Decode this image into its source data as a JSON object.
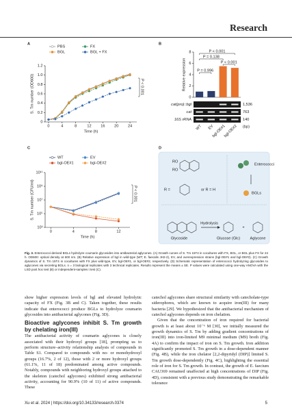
{
  "header": {
    "journal": "Research"
  },
  "figure": {
    "panels": [
      {
        "letter": "A",
        "type": "line",
        "x": [
          0,
          2,
          4,
          6,
          8,
          10,
          12,
          14,
          16,
          18,
          20,
          22,
          24
        ],
        "xlim": [
          -1,
          26
        ],
        "xticks": [
          0,
          4,
          8,
          12,
          16,
          20,
          24
        ],
        "ylim": [
          0,
          1.2
        ],
        "yticks": [
          0,
          0.2,
          0.4,
          0.6,
          0.8,
          {
            "value": 1,
            "label": "1.0"
          },
          1.2
        ],
        "xlabel": "Time (h)",
        "ylabel": "S. Tm number (OD600)",
        "annotation": "P < 0.001",
        "series": [
          {
            "name": "PBS",
            "color": "#8c8c8c",
            "values": [
              0.05,
              0.08,
              0.22,
              0.42,
              0.55,
              0.63,
              0.7,
              0.76,
              0.82,
              0.88,
              0.93,
              0.98,
              1.02
            ]
          },
          {
            "name": "FX",
            "color": "#3e9a6e",
            "values": [
              0.05,
              0.07,
              0.2,
              0.4,
              0.52,
              0.6,
              0.66,
              0.72,
              0.78,
              0.84,
              0.9,
              0.95,
              1.0
            ]
          },
          {
            "name": "BGL",
            "color": "#e8902c",
            "values": [
              0.05,
              0.08,
              0.21,
              0.41,
              0.54,
              0.62,
              0.69,
              0.75,
              0.81,
              0.87,
              0.92,
              0.97,
              1.01
            ]
          },
          {
            "name": "BGL + FX",
            "color": "#3b6fb6",
            "values": [
              0.05,
              0.06,
              0.12,
              0.2,
              0.28,
              0.35,
              0.42,
              0.48,
              0.54,
              0.6,
              0.64,
              0.68,
              0.72
            ]
          }
        ]
      },
      {
        "letter": "B",
        "type": "bar",
        "categories": [
          "WT",
          "EV",
          "bgl-OE#1",
          "bgl-OE#2"
        ],
        "values": [
          1,
          1.1,
          5.5,
          5.2
        ],
        "colors": [
          "#2c3e6b",
          "#2c3e6b",
          "#e8722c",
          "#e8722c"
        ],
        "ylim": [
          0,
          8
        ],
        "yticks": [
          0,
          2,
          4,
          6,
          8
        ],
        "ylabel": "Relative expression",
        "annotations": [
          "P = 0.996",
          "P < 0.001",
          "P < 0.001",
          "P = 0.138"
        ],
        "gel": {
          "rows": [
            "cat(pro)::bgl",
            "cat",
            "16S rRNA"
          ],
          "sizes": [
            "1,536",
            "763",
            "140"
          ],
          "unit": "(bp)"
        }
      },
      {
        "letter": "C",
        "type": "line",
        "log_scale": true,
        "x": [
          0,
          4,
          8,
          12
        ],
        "xlim": [
          -1,
          14
        ],
        "xticks": [
          0,
          4,
          8,
          12
        ],
        "ylim": [
          1000,
          100000000000
        ],
        "yticks": [
          {
            "value": 1000,
            "label": "10³"
          },
          {
            "value": 100000,
            "label": "10⁵"
          },
          {
            "value": 10000000,
            "label": "10⁷"
          },
          {
            "value": 1000000000,
            "label": "10⁹"
          },
          {
            "value": 100000000000,
            "label": "10¹¹"
          }
        ],
        "xlabel": "Time (h)",
        "ylabel": "S. Tm number (CFU/ml)",
        "annotation": "P < 0.001",
        "series": [
          {
            "name": "WT",
            "color": "#2c3e6b",
            "values": [
              1000000,
              300000,
              5000000,
              100000000
            ]
          },
          {
            "name": "EV",
            "color": "#4a86c8",
            "values": [
              1000000,
              250000,
              4000000,
              80000000
            ]
          },
          {
            "name": "bgl-OE#1",
            "color": "#d9532c",
            "values": [
              1000000,
              80000,
              20000,
              8000
            ]
          },
          {
            "name": "bgl-OE#2",
            "color": "#efa045",
            "values": [
              1000000,
              100000,
              40000,
              15000
            ]
          }
        ]
      },
      {
        "letter": "D",
        "type": "diagram",
        "labels": [
          "RO",
          "RO",
          "R =",
          "or  R = H",
          "Enterococci",
          "BGLs",
          "Hydrolysis",
          "Glycoside",
          "Glucose (Glc)",
          "Aglycone"
        ]
      }
    ],
    "caption": {
      "label": "Fig. 3.",
      "text": "Enterococci-derived BGLs hydrolyze coumarin glycosides into antibacterial aglycones. (A) Growth curves of S. Tm 15T4 in cocultures with FX, BGL, or BGL plus FX for 24 h. OD600: optical density at 600 nm. (B) Relative expression of bgl in wild-type (WT; E. faecalis JH2-2), EV, and overexpression strains (bgl-OE#1 and bgl-OE#2). (C) Growth dynamics of S. Tm 15T4 in cocultures with FX plus wild-type, EV, bgl-OE#1, or bgl-OE#2, respectively. (D) Schematic representation of enterococci hydrolyzing glycosides to aglycones via secreting BGLs. n = 3 biological replicates with 3 technical replicates. Results represent the means ± SE. P values were calculated using one-way ANOVA with the LSD post hoc test (B) or independent-samples t test (C)."
    }
  },
  "body": {
    "left": [
      "show higher expression levels of bgl and elevated hydrolytic capacity of FX (Fig. 3B and C). Taken together, these results indicate that enterococci produce BGLs to hydrolyze coumarin glycosides into antibacterial aglycones (Fig. 3D).",
      "Bioactive aglycones inhibit S. Tm growth by chelating iron(III)",
      "The antibacterial activity of coumarin aglycones is closely associated with their hydroxyl groups [18], prompting us to perform structure–activity relationship analysis of compounds in Table S1. Compared to compounds with no- or monohydroxyl groups (16.7%, 2 of 12), those with 2 or more hydroxyl groups (61.1%, 11 of 18) predominated among active compounds. Notably, compounds with neighboring hydroxyl groups attached to the skeleton (catechol aglycones) exhibited strong antibacterial activity, accounting for 90.9% (10 of 11) of active compounds. These"
    ],
    "right": [
      "catechol aglycones share structural similarity with catecholate-type siderophores, which are known to acquire iron(III) for many bacteria [29]. We hypothesized that the antibacterial mechanism of catechol aglycones depends on iron chelation.",
      "Given that the concentration of iron required for bacterial growth is at least about 10⁻⁶ M [30], we initially measured the growth dynamics of S. Tm by adding gradient concentrations of iron(III) into iron-limited M9 minimal medium (M9) broth (Fig. 4A) to confirm the impact of iron on S. Tm growth. Iron addition significantly promoted S. Tm growth in a dose-dependent manner (Fig. 4B), while the iron chelator [2,2-dipyridyl (DIP)] limited S. Tm growth dose-dependently (Fig. 4C), highlighting the essential role of iron for S. Tm growth. In contrast, the growth of E. faecium CAU369 remained unaffected at high concentrations of DIP (Fig. 4D), consistent with a previous study demonstrating the remarkable tolerance"
    ]
  },
  "footer": {
    "citation": "Xu et al. 2024 | https://doi.org/10.34133/research.0374",
    "page": "5"
  }
}
